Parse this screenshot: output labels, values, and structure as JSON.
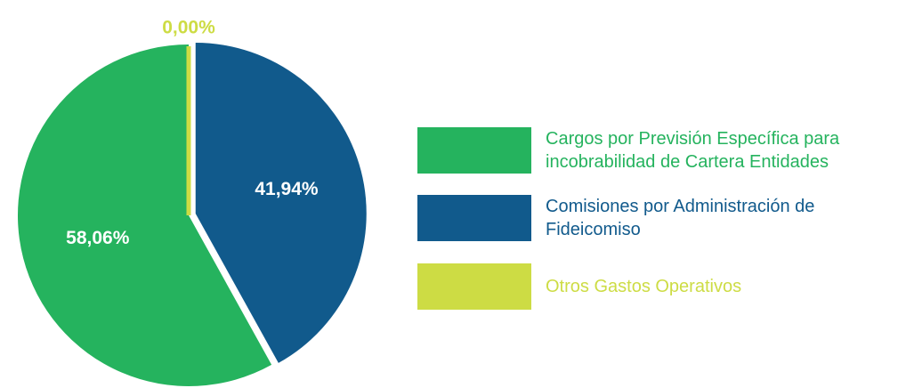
{
  "chart_data": {
    "type": "pie",
    "categories": [
      "Cargos por Previsión Específica para incobrabilidad de Cartera Entidades",
      "Comisiones por Administración de Fideicomiso",
      "Otros Gastos Operativos"
    ],
    "values": [
      58.06,
      41.94,
      0
    ],
    "value_labels": [
      "58,06%",
      "41,94%",
      "0,00%"
    ],
    "colors": [
      "#25b35e",
      "#115a8c",
      "#cddc44"
    ]
  }
}
